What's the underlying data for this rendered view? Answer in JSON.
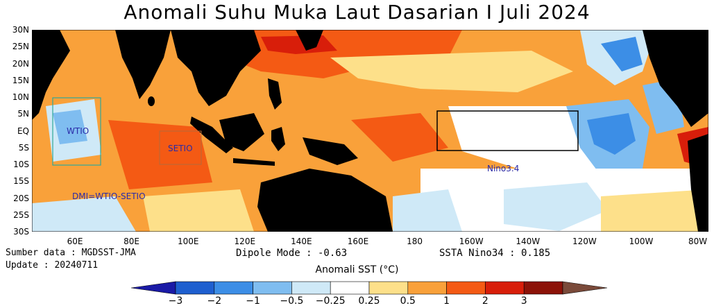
{
  "title": "Anomali Suhu Muka Laut Dasarian I Juli 2024",
  "lat_labels": [
    "30N",
    "25N",
    "20N",
    "15N",
    "10N",
    "5N",
    "EQ",
    "5S",
    "10S",
    "15S",
    "20S",
    "25S",
    "30S"
  ],
  "lon_labels": [
    "60E",
    "80E",
    "100E",
    "120E",
    "140E",
    "160E",
    "180",
    "160W",
    "140W",
    "120W",
    "100W",
    "80W"
  ],
  "regions": {
    "wtio": "WTIO",
    "setio": "SETIO",
    "nino34": "Nino3.4",
    "dmi": "DMI=WTIO-SETIO"
  },
  "info": {
    "source": "Sumber data : MGDSST-JMA",
    "update": "Update : 20240711",
    "dipole": "Dipole Mode : -0.63",
    "ssta": "SSTA Nino34 : 0.185"
  },
  "colorbar": {
    "title": "Anomali SST (°C)",
    "labels": [
      "−3",
      "−2",
      "−1",
      "−0.5",
      "−0.25",
      "0.25",
      "0.5",
      "1",
      "2",
      "3"
    ],
    "colors": [
      "#1a1aa6",
      "#1e5fcf",
      "#3c8ee6",
      "#7fbdf0",
      "#cfe9f7",
      "#ffffff",
      "#fde08a",
      "#f9a13a",
      "#f45a14",
      "#d81e0a",
      "#8c1208",
      "#7a4a3a"
    ]
  }
}
